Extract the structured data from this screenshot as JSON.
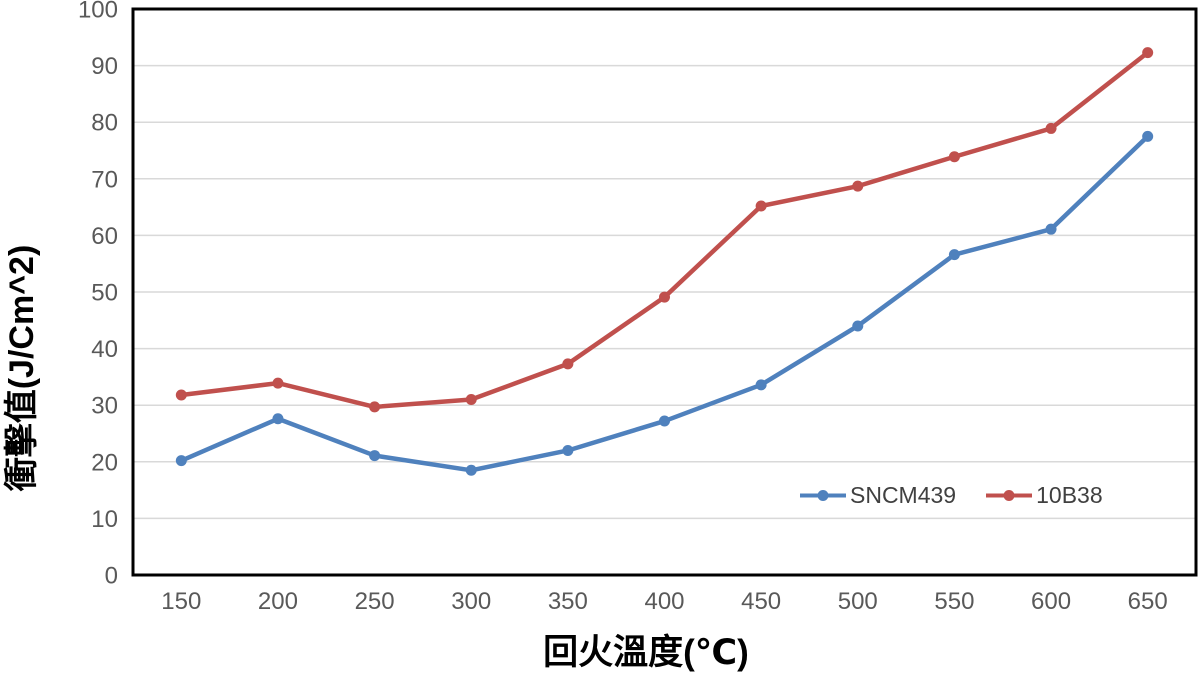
{
  "chart_data": {
    "type": "line",
    "title": "",
    "xlabel": "回火溫度(℃)",
    "ylabel": "衝擊值(J/Cm^2)",
    "categories": [
      150,
      200,
      250,
      300,
      350,
      400,
      450,
      500,
      550,
      600,
      650
    ],
    "series": [
      {
        "name": "SNCM439",
        "color": "#4F81BD",
        "values": [
          20.2,
          27.6,
          21.1,
          18.5,
          22.0,
          27.2,
          33.6,
          44.0,
          56.6,
          61.1,
          77.5
        ]
      },
      {
        "name": "10B38",
        "color": "#C0504D",
        "values": [
          31.8,
          33.9,
          29.7,
          31.0,
          37.3,
          49.1,
          65.2,
          68.7,
          73.9,
          78.9,
          92.3
        ]
      }
    ],
    "ylim": [
      0,
      100
    ],
    "y_tick_step": 10,
    "y_tick_labels": [
      "0",
      "10",
      "20",
      "30",
      "40",
      "50",
      "60",
      "70",
      "80",
      "90",
      "100"
    ],
    "grid": true,
    "legend_position": "inside-bottom-right",
    "marker": "circle"
  },
  "styles": {
    "background": "#FFFFFF",
    "plot_border": "#000000",
    "gridline": "#D9D9D9",
    "tick_label": "#595959",
    "axis_title": "#000000",
    "legend_text": "#404040"
  }
}
